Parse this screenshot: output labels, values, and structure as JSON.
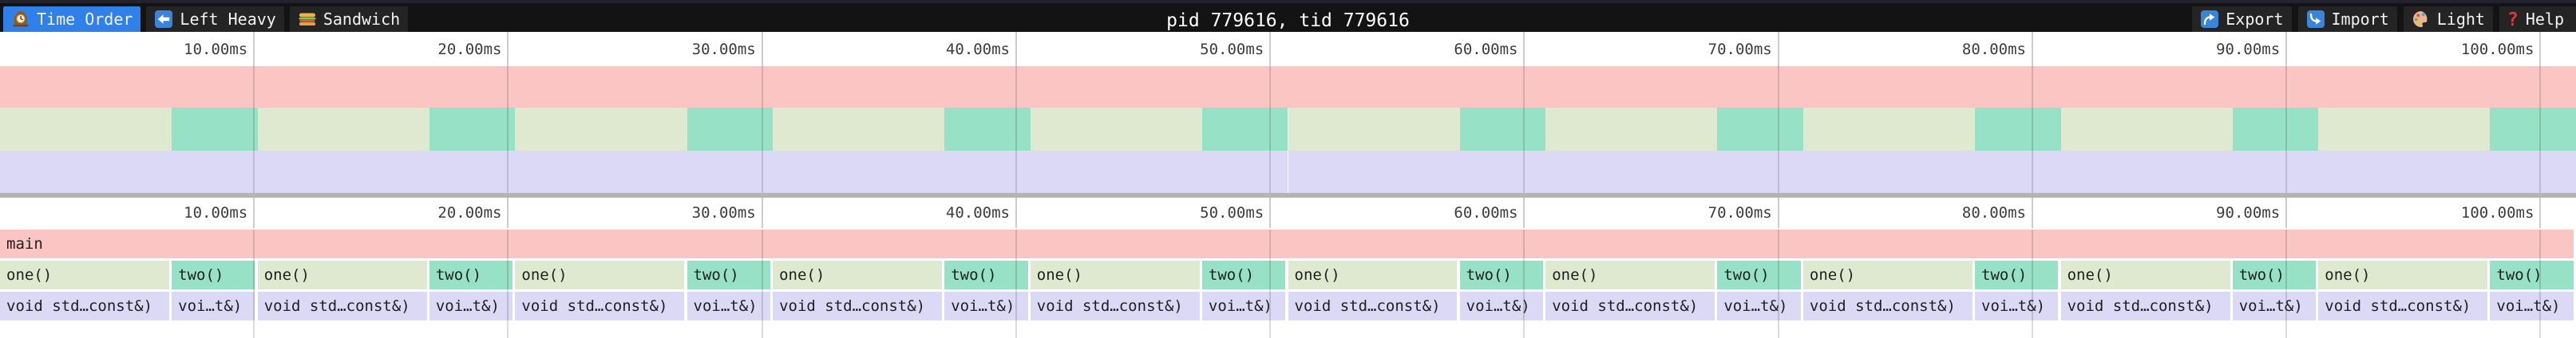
{
  "topbar": {
    "title": "pid 779616, tid 779616",
    "tabs": [
      {
        "label": "Time Order",
        "icon": "clock-icon",
        "active": true
      },
      {
        "label": "Left Heavy",
        "icon": "left-arrow-icon",
        "active": false
      },
      {
        "label": "Sandwich",
        "icon": "sandwich-icon",
        "active": false
      }
    ],
    "actions": [
      {
        "label": "Export",
        "icon": "export-icon"
      },
      {
        "label": "Import",
        "icon": "import-icon"
      },
      {
        "label": "Light",
        "icon": "palette-icon"
      },
      {
        "label": "Help",
        "icon": "help-icon"
      }
    ]
  },
  "colors": {
    "top_strip": "#23232f",
    "topbar_bg": "#131313",
    "tab_bg": "#242424",
    "accent_blue": "#2f80e8",
    "text_light": "#f2f2f2",
    "text_dark": "#1f1f1f",
    "tick_line": "#cccccc",
    "divider_gray": "#b4b4b4",
    "frame_pink": "#fbc5c4",
    "frame_green": "#dee9cf",
    "frame_teal": "#97e1c7",
    "frame_lavender": "#dcd9f7"
  },
  "chart_data": {
    "type": "flamegraph",
    "unit": "ms",
    "viewport_ms": [
      0,
      101.4
    ],
    "ticks": [
      {
        "ms": 10,
        "label": "10.00ms"
      },
      {
        "ms": 20,
        "label": "20.00ms"
      },
      {
        "ms": 30,
        "label": "30.00ms"
      },
      {
        "ms": 40,
        "label": "40.00ms"
      },
      {
        "ms": 50,
        "label": "50.00ms"
      },
      {
        "ms": 60,
        "label": "60.00ms"
      },
      {
        "ms": 70,
        "label": "70.00ms"
      },
      {
        "ms": 80,
        "label": "80.00ms"
      },
      {
        "ms": 90,
        "label": "90.00ms"
      },
      {
        "ms": 100,
        "label": "100.00ms"
      }
    ],
    "levels": [
      {
        "depth": 0,
        "frames": [
          {
            "label": "main",
            "start_ms": 0,
            "end_ms": 101.4,
            "color": "pink"
          }
        ]
      },
      {
        "depth": 1,
        "frames": [
          {
            "label": "one()",
            "start_ms": 0,
            "end_ms": 6.76,
            "color": "green"
          },
          {
            "label": "two()",
            "start_ms": 6.76,
            "end_ms": 10.14,
            "color": "teal"
          },
          {
            "label": "one()",
            "start_ms": 10.14,
            "end_ms": 16.9,
            "color": "green"
          },
          {
            "label": "two()",
            "start_ms": 16.9,
            "end_ms": 20.28,
            "color": "teal"
          },
          {
            "label": "one()",
            "start_ms": 20.28,
            "end_ms": 27.04,
            "color": "green"
          },
          {
            "label": "two()",
            "start_ms": 27.04,
            "end_ms": 30.42,
            "color": "teal"
          },
          {
            "label": "one()",
            "start_ms": 30.42,
            "end_ms": 37.18,
            "color": "green"
          },
          {
            "label": "two()",
            "start_ms": 37.18,
            "end_ms": 40.56,
            "color": "teal"
          },
          {
            "label": "one()",
            "start_ms": 40.56,
            "end_ms": 47.32,
            "color": "green"
          },
          {
            "label": "two()",
            "start_ms": 47.32,
            "end_ms": 50.7,
            "color": "teal"
          },
          {
            "label": "one()",
            "start_ms": 50.7,
            "end_ms": 57.46,
            "color": "green"
          },
          {
            "label": "two()",
            "start_ms": 57.46,
            "end_ms": 60.84,
            "color": "teal"
          },
          {
            "label": "one()",
            "start_ms": 60.84,
            "end_ms": 67.6,
            "color": "green"
          },
          {
            "label": "two()",
            "start_ms": 67.6,
            "end_ms": 70.98,
            "color": "teal"
          },
          {
            "label": "one()",
            "start_ms": 70.98,
            "end_ms": 77.74,
            "color": "green"
          },
          {
            "label": "two()",
            "start_ms": 77.74,
            "end_ms": 81.12,
            "color": "teal"
          },
          {
            "label": "one()",
            "start_ms": 81.12,
            "end_ms": 87.88,
            "color": "green"
          },
          {
            "label": "two()",
            "start_ms": 87.88,
            "end_ms": 91.26,
            "color": "teal"
          },
          {
            "label": "one()",
            "start_ms": 91.26,
            "end_ms": 98.02,
            "color": "green"
          },
          {
            "label": "two()",
            "start_ms": 98.02,
            "end_ms": 101.4,
            "color": "teal"
          }
        ]
      },
      {
        "depth": 2,
        "frames": [
          {
            "label": "void std…const&)",
            "start_ms": 0,
            "end_ms": 6.76,
            "color": "lavender"
          },
          {
            "label": "voi…t&)",
            "start_ms": 6.76,
            "end_ms": 10.14,
            "color": "lavender"
          },
          {
            "label": "void std…const&)",
            "start_ms": 10.14,
            "end_ms": 16.9,
            "color": "lavender"
          },
          {
            "label": "voi…t&)",
            "start_ms": 16.9,
            "end_ms": 20.28,
            "color": "lavender"
          },
          {
            "label": "void std…const&)",
            "start_ms": 20.28,
            "end_ms": 27.04,
            "color": "lavender"
          },
          {
            "label": "voi…t&)",
            "start_ms": 27.04,
            "end_ms": 30.42,
            "color": "lavender"
          },
          {
            "label": "void std…const&)",
            "start_ms": 30.42,
            "end_ms": 37.18,
            "color": "lavender"
          },
          {
            "label": "voi…t&)",
            "start_ms": 37.18,
            "end_ms": 40.56,
            "color": "lavender"
          },
          {
            "label": "void std…const&)",
            "start_ms": 40.56,
            "end_ms": 47.32,
            "color": "lavender"
          },
          {
            "label": "voi…t&)",
            "start_ms": 47.32,
            "end_ms": 50.7,
            "color": "lavender"
          },
          {
            "label": "void std…const&)",
            "start_ms": 50.7,
            "end_ms": 57.46,
            "color": "lavender"
          },
          {
            "label": "voi…t&)",
            "start_ms": 57.46,
            "end_ms": 60.84,
            "color": "lavender"
          },
          {
            "label": "void std…const&)",
            "start_ms": 60.84,
            "end_ms": 67.6,
            "color": "lavender"
          },
          {
            "label": "voi…t&)",
            "start_ms": 67.6,
            "end_ms": 70.98,
            "color": "lavender"
          },
          {
            "label": "void std…const&)",
            "start_ms": 70.98,
            "end_ms": 77.74,
            "color": "lavender"
          },
          {
            "label": "voi…t&)",
            "start_ms": 77.74,
            "end_ms": 81.12,
            "color": "lavender"
          },
          {
            "label": "void std…const&)",
            "start_ms": 81.12,
            "end_ms": 87.88,
            "color": "lavender"
          },
          {
            "label": "voi…t&)",
            "start_ms": 87.88,
            "end_ms": 91.26,
            "color": "lavender"
          },
          {
            "label": "void std…const&)",
            "start_ms": 91.26,
            "end_ms": 98.02,
            "color": "lavender"
          },
          {
            "label": "voi…t&)",
            "start_ms": 98.02,
            "end_ms": 101.4,
            "color": "lavender"
          }
        ]
      }
    ]
  }
}
